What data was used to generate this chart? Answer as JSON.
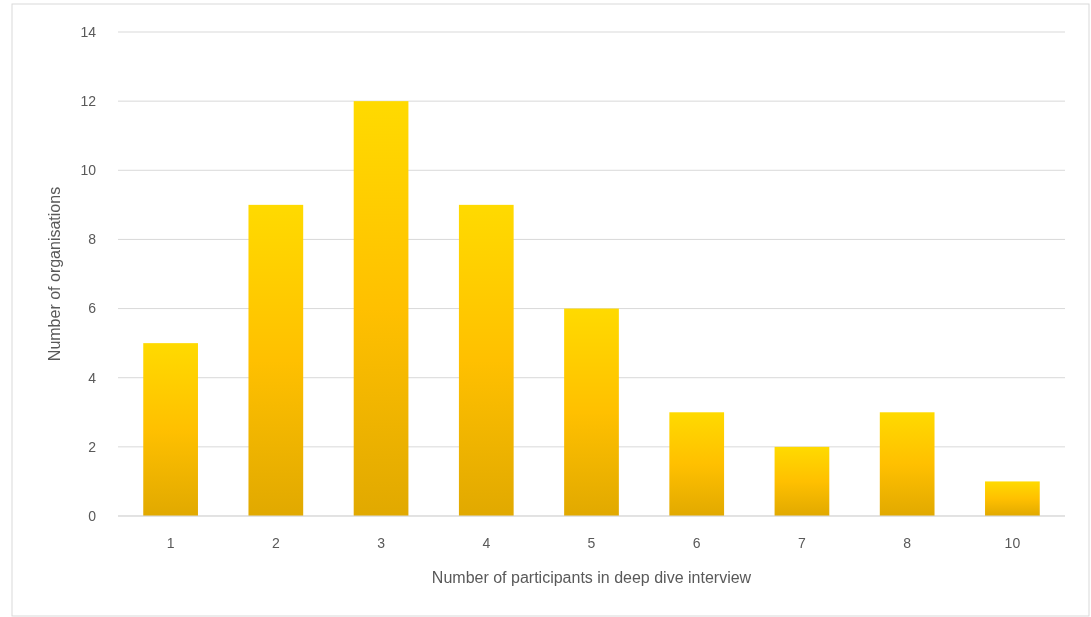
{
  "chart_data": {
    "type": "bar",
    "xlabel": "Number of participants in deep dive interview",
    "ylabel": "Number of organisations",
    "categories": [
      "1",
      "2",
      "3",
      "4",
      "5",
      "6",
      "7",
      "8",
      "10"
    ],
    "values": [
      5,
      9,
      12,
      9,
      6,
      3,
      2,
      3,
      1
    ],
    "color": "#ffc000",
    "ylim": [
      0,
      14
    ],
    "yticks": [
      0,
      2,
      4,
      6,
      8,
      10,
      12,
      14
    ],
    "grid": "y"
  }
}
